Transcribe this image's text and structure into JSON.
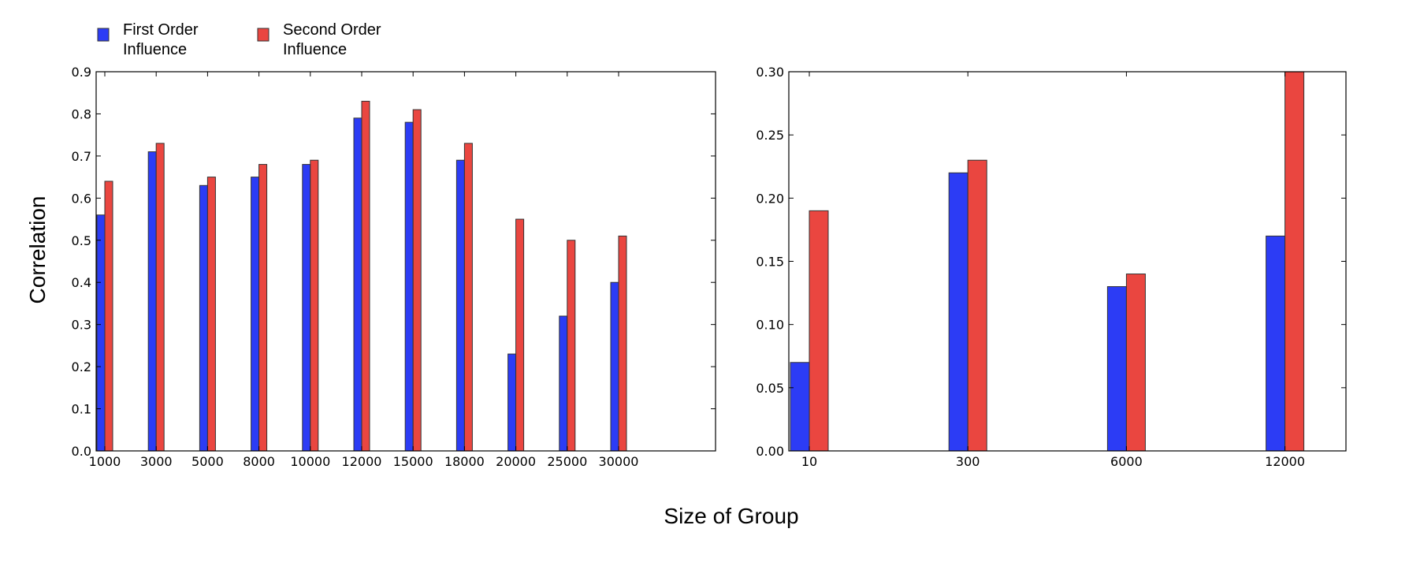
{
  "legend": {
    "first_order": {
      "line1": "First Order",
      "line2": "Influence"
    },
    "second_order": {
      "line1": "Second Order",
      "line2": "Influence"
    }
  },
  "ylabel": "Correlation",
  "xlabel": "Size of Group",
  "colors": {
    "first_order": "#2c3cf5",
    "second_order": "#ea4640",
    "axis": "#000000"
  },
  "chart_data": [
    {
      "type": "bar",
      "categories": [
        "1000",
        "3000",
        "5000",
        "8000",
        "10000",
        "12000",
        "15000",
        "18000",
        "20000",
        "25000",
        "30000"
      ],
      "series": [
        {
          "name": "First Order Influence",
          "values": [
            0.56,
            0.71,
            0.63,
            0.65,
            0.68,
            0.79,
            0.78,
            0.69,
            0.23,
            0.32,
            0.4
          ]
        },
        {
          "name": "Second Order Influence",
          "values": [
            0.64,
            0.73,
            0.65,
            0.68,
            0.69,
            0.83,
            0.81,
            0.73,
            0.55,
            0.5,
            0.51
          ]
        }
      ],
      "ylim": [
        0,
        0.9
      ],
      "yticks": [
        "0.0",
        "0.1",
        "0.2",
        "0.3",
        "0.4",
        "0.5",
        "0.6",
        "0.7",
        "0.8",
        "0.9"
      ],
      "grid": false
    },
    {
      "type": "bar",
      "categories": [
        "10",
        "300",
        "6000",
        "12000"
      ],
      "series": [
        {
          "name": "First Order Influence",
          "values": [
            0.07,
            0.22,
            0.13,
            0.17
          ]
        },
        {
          "name": "Second Order Influence",
          "values": [
            0.19,
            0.23,
            0.14,
            0.3
          ]
        }
      ],
      "ylim": [
        0,
        0.3
      ],
      "yticks": [
        "0.00",
        "0.05",
        "0.10",
        "0.15",
        "0.20",
        "0.25",
        "0.30"
      ],
      "grid": false
    }
  ]
}
